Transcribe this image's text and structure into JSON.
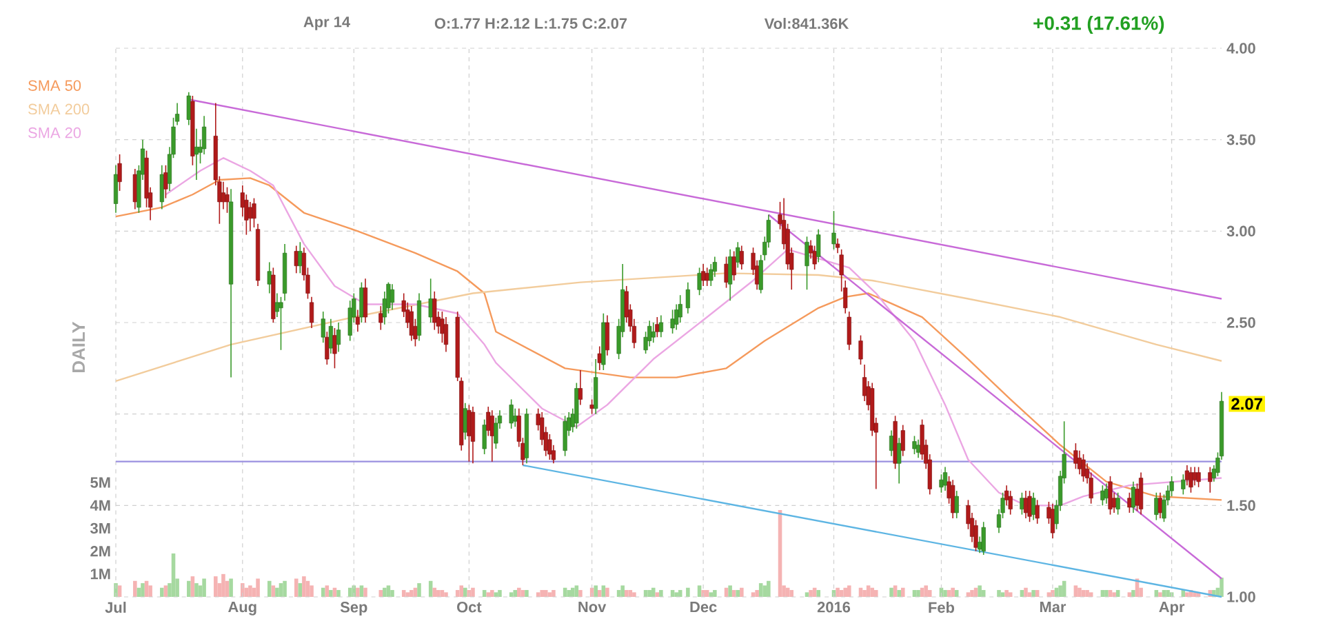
{
  "chart_data": {
    "type": "candlestick",
    "x": [
      "2015-07-01",
      "2015-07-02",
      "2015-07-06",
      "2015-07-07",
      "2015-07-08",
      "2015-07-09",
      "2015-07-10",
      "2015-07-13",
      "2015-07-14",
      "2015-07-15",
      "2015-07-16",
      "2015-07-17",
      "2015-07-20",
      "2015-07-21",
      "2015-07-22",
      "2015-07-23",
      "2015-07-24",
      "2015-07-27",
      "2015-07-28",
      "2015-07-29",
      "2015-07-30",
      "2015-07-31",
      "2015-08-03",
      "2015-08-04",
      "2015-08-05",
      "2015-08-06",
      "2015-08-07",
      "2015-08-10",
      "2015-08-11",
      "2015-08-12",
      "2015-08-13",
      "2015-08-14",
      "2015-08-17",
      "2015-08-18",
      "2015-08-19",
      "2015-08-20",
      "2015-08-21",
      "2015-08-24",
      "2015-08-25",
      "2015-08-26",
      "2015-08-27",
      "2015-08-28",
      "2015-08-31",
      "2015-09-01",
      "2015-09-02",
      "2015-09-03",
      "2015-09-04",
      "2015-09-08",
      "2015-09-09",
      "2015-09-10",
      "2015-09-11",
      "2015-09-14",
      "2015-09-15",
      "2015-09-16",
      "2015-09-17",
      "2015-09-18",
      "2015-09-21",
      "2015-09-22",
      "2015-09-23",
      "2015-09-24",
      "2015-09-25",
      "2015-09-28",
      "2015-09-29",
      "2015-09-30",
      "2015-10-01",
      "2015-10-02",
      "2015-10-05",
      "2015-10-06",
      "2015-10-07",
      "2015-10-08",
      "2015-10-09",
      "2015-10-12",
      "2015-10-13",
      "2015-10-14",
      "2015-10-15",
      "2015-10-16",
      "2015-10-19",
      "2015-10-20",
      "2015-10-21",
      "2015-10-22",
      "2015-10-23",
      "2015-10-26",
      "2015-10-27",
      "2015-10-28",
      "2015-10-29",
      "2015-10-30",
      "2015-11-02",
      "2015-11-03",
      "2015-11-04",
      "2015-11-05",
      "2015-11-06",
      "2015-11-09",
      "2015-11-10",
      "2015-11-11",
      "2015-11-12",
      "2015-11-13",
      "2015-11-16",
      "2015-11-17",
      "2015-11-18",
      "2015-11-19",
      "2015-11-20",
      "2015-11-23",
      "2015-11-24",
      "2015-11-25",
      "2015-11-27",
      "2015-11-30",
      "2015-12-01",
      "2015-12-02",
      "2015-12-03",
      "2015-12-04",
      "2015-12-07",
      "2015-12-08",
      "2015-12-09",
      "2015-12-10",
      "2015-12-11",
      "2015-12-14",
      "2015-12-15",
      "2015-12-16",
      "2015-12-17",
      "2015-12-18",
      "2015-12-21",
      "2015-12-22",
      "2015-12-23",
      "2015-12-24",
      "2015-12-28",
      "2015-12-29",
      "2015-12-30",
      "2015-12-31",
      "2016-01-04",
      "2016-01-05",
      "2016-01-06",
      "2016-01-07",
      "2016-01-08",
      "2016-01-11",
      "2016-01-12",
      "2016-01-13",
      "2016-01-14",
      "2016-01-15",
      "2016-01-19",
      "2016-01-20",
      "2016-01-21",
      "2016-01-22",
      "2016-01-25",
      "2016-01-26",
      "2016-01-27",
      "2016-01-28",
      "2016-01-29",
      "2016-02-01",
      "2016-02-02",
      "2016-02-03",
      "2016-02-04",
      "2016-02-05",
      "2016-02-08",
      "2016-02-09",
      "2016-02-10",
      "2016-02-11",
      "2016-02-12",
      "2016-02-16",
      "2016-02-17",
      "2016-02-18",
      "2016-02-19",
      "2016-02-22",
      "2016-02-23",
      "2016-02-24",
      "2016-02-25",
      "2016-02-26",
      "2016-02-29",
      "2016-03-01",
      "2016-03-02",
      "2016-03-03",
      "2016-03-04",
      "2016-03-07",
      "2016-03-08",
      "2016-03-09",
      "2016-03-10",
      "2016-03-11",
      "2016-03-14",
      "2016-03-15",
      "2016-03-16",
      "2016-03-17",
      "2016-03-18",
      "2016-03-21",
      "2016-03-22",
      "2016-03-23",
      "2016-03-24",
      "2016-03-28",
      "2016-03-29",
      "2016-03-30",
      "2016-03-31",
      "2016-04-01",
      "2016-04-04",
      "2016-04-05",
      "2016-04-06",
      "2016-04-07",
      "2016-04-08",
      "2016-04-11",
      "2016-04-12",
      "2016-04-13",
      "2016-04-14"
    ],
    "ohlc": [
      [
        3.15,
        3.36,
        3.1,
        3.31
      ],
      [
        3.37,
        3.42,
        3.22,
        3.27
      ],
      [
        3.31,
        3.34,
        3.12,
        3.16
      ],
      [
        3.13,
        3.36,
        3.1,
        3.33
      ],
      [
        3.31,
        3.5,
        3.28,
        3.45
      ],
      [
        3.4,
        3.44,
        3.13,
        3.18
      ],
      [
        3.21,
        3.24,
        3.06,
        3.13
      ],
      [
        3.16,
        3.36,
        3.12,
        3.31
      ],
      [
        3.32,
        3.36,
        3.18,
        3.23
      ],
      [
        3.26,
        3.46,
        3.22,
        3.42
      ],
      [
        3.42,
        3.62,
        3.4,
        3.57
      ],
      [
        3.6,
        3.7,
        3.58,
        3.64
      ],
      [
        3.61,
        3.76,
        3.58,
        3.74
      ],
      [
        3.71,
        3.74,
        3.36,
        3.41
      ],
      [
        3.42,
        3.56,
        3.28,
        3.46
      ],
      [
        3.43,
        3.5,
        3.37,
        3.46
      ],
      [
        3.45,
        3.63,
        3.42,
        3.57
      ],
      [
        3.52,
        3.7,
        3.25,
        3.28
      ],
      [
        3.27,
        3.3,
        3.04,
        3.16
      ],
      [
        3.21,
        3.27,
        3.12,
        3.16
      ],
      [
        3.2,
        3.24,
        3.1,
        3.16
      ],
      [
        2.71,
        3.23,
        2.2,
        3.16
      ],
      [
        3.21,
        3.25,
        3.08,
        3.13
      ],
      [
        3.17,
        3.2,
        2.98,
        3.06
      ],
      [
        3.13,
        3.16,
        3.0,
        3.07
      ],
      [
        3.15,
        3.18,
        3.02,
        3.07
      ],
      [
        3.01,
        3.04,
        2.7,
        2.73
      ],
      [
        2.71,
        2.83,
        2.66,
        2.78
      ],
      [
        2.76,
        2.8,
        2.5,
        2.52
      ],
      [
        2.56,
        2.66,
        2.53,
        2.61
      ],
      [
        2.58,
        2.64,
        2.35,
        2.61
      ],
      [
        2.66,
        2.93,
        2.62,
        2.88
      ],
      [
        2.89,
        2.92,
        2.77,
        2.81
      ],
      [
        2.81,
        2.94,
        2.77,
        2.89
      ],
      [
        2.88,
        2.91,
        2.73,
        2.76
      ],
      [
        2.76,
        2.8,
        2.63,
        2.66
      ],
      [
        2.61,
        2.64,
        2.47,
        2.5
      ],
      [
        2.42,
        2.56,
        2.39,
        2.52
      ],
      [
        2.42,
        2.45,
        2.27,
        2.3
      ],
      [
        2.36,
        2.52,
        2.33,
        2.48
      ],
      [
        2.43,
        2.47,
        2.25,
        2.33
      ],
      [
        2.38,
        2.5,
        2.34,
        2.46
      ],
      [
        2.43,
        2.62,
        2.4,
        2.58
      ],
      [
        2.53,
        2.66,
        2.5,
        2.63
      ],
      [
        2.53,
        2.57,
        2.45,
        2.49
      ],
      [
        2.53,
        2.72,
        2.5,
        2.69
      ],
      [
        2.69,
        2.74,
        2.5,
        2.53
      ],
      [
        2.55,
        2.59,
        2.46,
        2.5
      ],
      [
        2.53,
        2.67,
        2.49,
        2.63
      ],
      [
        2.58,
        2.72,
        2.55,
        2.71
      ],
      [
        2.61,
        2.71,
        2.57,
        2.68
      ],
      [
        2.62,
        2.66,
        2.53,
        2.56
      ],
      [
        2.57,
        2.61,
        2.47,
        2.5
      ],
      [
        2.56,
        2.59,
        2.4,
        2.43
      ],
      [
        2.48,
        2.52,
        2.37,
        2.41
      ],
      [
        2.43,
        2.66,
        2.4,
        2.62
      ],
      [
        2.53,
        2.74,
        2.5,
        2.63
      ],
      [
        2.63,
        2.67,
        2.46,
        2.5
      ],
      [
        2.53,
        2.56,
        2.44,
        2.48
      ],
      [
        2.52,
        2.56,
        2.39,
        2.44
      ],
      [
        2.49,
        2.53,
        2.34,
        2.38
      ],
      [
        2.53,
        2.56,
        2.18,
        2.2
      ],
      [
        2.18,
        2.2,
        1.8,
        1.83
      ],
      [
        1.9,
        2.06,
        1.86,
        2.03
      ],
      [
        2.02,
        2.05,
        1.74,
        1.88
      ],
      [
        2.01,
        2.04,
        1.73,
        1.85
      ],
      [
        1.81,
        1.97,
        1.78,
        1.94
      ],
      [
        2.01,
        2.04,
        1.88,
        1.91
      ],
      [
        1.99,
        2.02,
        1.74,
        1.88
      ],
      [
        1.84,
        1.98,
        1.81,
        1.95
      ],
      [
        1.95,
        2.02,
        1.92,
        1.99
      ],
      [
        1.95,
        2.08,
        1.92,
        2.05
      ],
      [
        1.96,
        2.03,
        1.93,
        1.99
      ],
      [
        1.99,
        2.03,
        1.82,
        1.85
      ],
      [
        1.84,
        1.87,
        1.72,
        1.75
      ],
      [
        1.76,
        2.03,
        1.73,
        2.0
      ],
      [
        2.0,
        2.03,
        1.91,
        1.94
      ],
      [
        1.98,
        2.01,
        1.83,
        1.86
      ],
      [
        1.9,
        1.93,
        1.77,
        1.8
      ],
      [
        1.86,
        1.89,
        1.75,
        1.78
      ],
      [
        1.8,
        1.83,
        1.73,
        1.75
      ],
      [
        1.8,
        1.99,
        1.77,
        1.96
      ],
      [
        1.91,
        2.01,
        1.88,
        1.98
      ],
      [
        1.93,
        2.03,
        1.9,
        2.0
      ],
      [
        1.95,
        2.17,
        1.92,
        2.14
      ],
      [
        2.14,
        2.24,
        2.05,
        2.08
      ],
      [
        2.05,
        2.08,
        2.0,
        2.03
      ],
      [
        2.03,
        2.3,
        2.0,
        2.2
      ],
      [
        2.33,
        2.37,
        2.24,
        2.28
      ],
      [
        2.27,
        2.55,
        2.24,
        2.5
      ],
      [
        2.5,
        2.54,
        2.32,
        2.35
      ],
      [
        2.33,
        2.52,
        2.3,
        2.48
      ],
      [
        2.45,
        2.82,
        2.42,
        2.68
      ],
      [
        2.67,
        2.7,
        2.5,
        2.53
      ],
      [
        2.57,
        2.6,
        2.45,
        2.48
      ],
      [
        2.48,
        2.52,
        2.36,
        2.39
      ],
      [
        2.35,
        2.45,
        2.33,
        2.42
      ],
      [
        2.4,
        2.51,
        2.37,
        2.48
      ],
      [
        2.42,
        2.5,
        2.39,
        2.45
      ],
      [
        2.49,
        2.53,
        2.42,
        2.45
      ],
      [
        2.45,
        2.54,
        2.42,
        2.5
      ],
      [
        2.47,
        2.57,
        2.44,
        2.52
      ],
      [
        2.49,
        2.6,
        2.46,
        2.57
      ],
      [
        2.53,
        2.65,
        2.5,
        2.6
      ],
      [
        2.58,
        2.72,
        2.55,
        2.68
      ],
      [
        2.68,
        2.8,
        2.65,
        2.77
      ],
      [
        2.78,
        2.82,
        2.7,
        2.73
      ],
      [
        2.77,
        2.8,
        2.7,
        2.73
      ],
      [
        2.73,
        2.82,
        2.7,
        2.79
      ],
      [
        2.78,
        2.86,
        2.75,
        2.83
      ],
      [
        2.82,
        2.86,
        2.69,
        2.72
      ],
      [
        2.71,
        2.9,
        2.62,
        2.86
      ],
      [
        2.86,
        2.89,
        2.73,
        2.76
      ],
      [
        2.83,
        2.94,
        2.8,
        2.91
      ],
      [
        2.89,
        2.92,
        2.79,
        2.82
      ],
      [
        2.88,
        2.91,
        2.76,
        2.79
      ],
      [
        2.81,
        2.84,
        2.68,
        2.71
      ],
      [
        2.68,
        2.87,
        2.66,
        2.84
      ],
      [
        2.87,
        2.97,
        2.84,
        2.94
      ],
      [
        2.94,
        3.09,
        2.91,
        3.06
      ],
      [
        3.09,
        3.16,
        3.01,
        3.04
      ],
      [
        3.06,
        3.18,
        2.9,
        2.93
      ],
      [
        3.01,
        3.04,
        2.79,
        2.82
      ],
      [
        2.88,
        2.91,
        2.68,
        2.79
      ],
      [
        2.81,
        2.97,
        2.68,
        2.94
      ],
      [
        2.92,
        2.95,
        2.85,
        2.88
      ],
      [
        2.89,
        2.92,
        2.79,
        2.82
      ],
      [
        2.86,
        3.01,
        2.83,
        2.98
      ],
      [
        2.93,
        3.11,
        2.9,
        2.99
      ],
      [
        2.93,
        2.96,
        2.88,
        2.91
      ],
      [
        2.87,
        2.9,
        2.67,
        2.76
      ],
      [
        2.69,
        2.73,
        2.55,
        2.58
      ],
      [
        2.53,
        2.56,
        2.35,
        2.38
      ],
      [
        2.4,
        2.43,
        2.27,
        2.3
      ],
      [
        2.2,
        2.27,
        2.07,
        2.1
      ],
      [
        2.15,
        2.18,
        2.02,
        2.05
      ],
      [
        2.14,
        2.17,
        1.88,
        1.91
      ],
      [
        1.95,
        1.98,
        1.59,
        1.9
      ],
      [
        1.8,
        1.91,
        1.77,
        1.88
      ],
      [
        1.96,
        1.99,
        1.7,
        1.73
      ],
      [
        1.73,
        1.87,
        1.62,
        1.84
      ],
      [
        1.91,
        1.94,
        1.77,
        1.8
      ],
      [
        1.81,
        1.88,
        1.78,
        1.85
      ],
      [
        1.79,
        1.86,
        1.76,
        1.83
      ],
      [
        1.94,
        1.97,
        1.75,
        1.78
      ],
      [
        1.83,
        1.86,
        1.7,
        1.73
      ],
      [
        1.75,
        1.78,
        1.56,
        1.59
      ],
      [
        1.6,
        1.67,
        1.57,
        1.64
      ],
      [
        1.61,
        1.71,
        1.58,
        1.68
      ],
      [
        1.63,
        1.66,
        1.51,
        1.54
      ],
      [
        1.61,
        1.64,
        1.43,
        1.46
      ],
      [
        1.46,
        1.58,
        1.43,
        1.55
      ],
      [
        1.5,
        1.53,
        1.37,
        1.4
      ],
      [
        1.43,
        1.46,
        1.3,
        1.33
      ],
      [
        1.39,
        1.42,
        1.25,
        1.27
      ],
      [
        1.26,
        1.33,
        1.24,
        1.3
      ],
      [
        1.25,
        1.41,
        1.23,
        1.38
      ],
      [
        1.38,
        1.48,
        1.35,
        1.45
      ],
      [
        1.46,
        1.57,
        1.43,
        1.54
      ],
      [
        1.58,
        1.61,
        1.5,
        1.53
      ],
      [
        1.55,
        1.58,
        1.45,
        1.48
      ],
      [
        1.48,
        1.57,
        1.45,
        1.54
      ],
      [
        1.54,
        1.58,
        1.43,
        1.46
      ],
      [
        1.55,
        1.58,
        1.41,
        1.44
      ],
      [
        1.45,
        1.57,
        1.42,
        1.54
      ],
      [
        1.5,
        1.53,
        1.4,
        1.43
      ],
      [
        1.49,
        1.52,
        1.4,
        1.43
      ],
      [
        1.48,
        1.51,
        1.32,
        1.35
      ],
      [
        1.4,
        1.53,
        1.37,
        1.5
      ],
      [
        1.5,
        1.69,
        1.47,
        1.66
      ],
      [
        1.65,
        1.96,
        1.62,
        1.78
      ],
      [
        1.8,
        1.84,
        1.7,
        1.73
      ],
      [
        1.76,
        1.8,
        1.67,
        1.7
      ],
      [
        1.75,
        1.78,
        1.63,
        1.66
      ],
      [
        1.7,
        1.73,
        1.62,
        1.65
      ],
      [
        1.65,
        1.68,
        1.51,
        1.54
      ],
      [
        1.53,
        1.61,
        1.5,
        1.58
      ],
      [
        1.54,
        1.62,
        1.51,
        1.59
      ],
      [
        1.63,
        1.66,
        1.45,
        1.48
      ],
      [
        1.54,
        1.57,
        1.46,
        1.49
      ],
      [
        1.48,
        1.57,
        1.45,
        1.54
      ],
      [
        1.54,
        1.57,
        1.46,
        1.49
      ],
      [
        1.49,
        1.63,
        1.46,
        1.6
      ],
      [
        1.59,
        1.62,
        1.47,
        1.5
      ],
      [
        1.65,
        1.68,
        1.45,
        1.48
      ],
      [
        1.45,
        1.57,
        1.42,
        1.54
      ],
      [
        1.54,
        1.57,
        1.43,
        1.46
      ],
      [
        1.43,
        1.56,
        1.41,
        1.53
      ],
      [
        1.53,
        1.61,
        1.5,
        1.58
      ],
      [
        1.58,
        1.66,
        1.55,
        1.63
      ],
      [
        1.59,
        1.67,
        1.56,
        1.64
      ],
      [
        1.69,
        1.72,
        1.61,
        1.64
      ],
      [
        1.68,
        1.71,
        1.57,
        1.6
      ],
      [
        1.68,
        1.71,
        1.61,
        1.64
      ],
      [
        1.68,
        1.71,
        1.6,
        1.63
      ],
      [
        1.68,
        1.71,
        1.57,
        1.63
      ],
      [
        1.65,
        1.72,
        1.63,
        1.7
      ],
      [
        1.68,
        1.79,
        1.66,
        1.76
      ],
      [
        1.77,
        2.12,
        1.75,
        2.07
      ]
    ],
    "colors": [
      "#3a9a2a",
      "#b01a1a",
      "#b01a1a",
      "#3a9a2a",
      "#3a9a2a",
      "#b01a1a",
      "#b01a1a",
      "#3a9a2a",
      "#b01a1a",
      "#3a9a2a",
      "#3a9a2a",
      "#3a9a2a",
      "#3a9a2a",
      "#b01a1a",
      "#3a9a2a",
      "#3a9a2a",
      "#3a9a2a",
      "#b01a1a",
      "#b01a1a",
      "#b01a1a",
      "#b01a1a",
      "#3a9a2a",
      "#b01a1a",
      "#b01a1a",
      "#b01a1a",
      "#b01a1a",
      "#b01a1a",
      "#3a9a2a",
      "#b01a1a",
      "#3a9a2a",
      "#3a9a2a",
      "#3a9a2a",
      "#b01a1a",
      "#3a9a2a",
      "#b01a1a",
      "#b01a1a",
      "#b01a1a",
      "#3a9a2a",
      "#b01a1a",
      "#3a9a2a",
      "#b01a1a",
      "#3a9a2a",
      "#3a9a2a",
      "#3a9a2a",
      "#b01a1a",
      "#3a9a2a",
      "#b01a1a",
      "#b01a1a",
      "#3a9a2a",
      "#3a9a2a",
      "#3a9a2a",
      "#b01a1a",
      "#b01a1a",
      "#b01a1a",
      "#b01a1a",
      "#3a9a2a",
      "#3a9a2a",
      "#b01a1a",
      "#b01a1a",
      "#b01a1a",
      "#b01a1a",
      "#b01a1a",
      "#b01a1a",
      "#3a9a2a",
      "#b01a1a",
      "#b01a1a",
      "#3a9a2a",
      "#b01a1a",
      "#b01a1a",
      "#3a9a2a",
      "#3a9a2a",
      "#3a9a2a",
      "#3a9a2a",
      "#b01a1a",
      "#b01a1a",
      "#3a9a2a",
      "#b01a1a",
      "#b01a1a",
      "#b01a1a",
      "#b01a1a",
      "#b01a1a",
      "#3a9a2a",
      "#3a9a2a",
      "#3a9a2a",
      "#3a9a2a",
      "#b01a1a",
      "#b01a1a",
      "#3a9a2a",
      "#b01a1a",
      "#3a9a2a",
      "#b01a1a",
      "#3a9a2a",
      "#3a9a2a",
      "#b01a1a",
      "#b01a1a",
      "#b01a1a",
      "#3a9a2a",
      "#3a9a2a",
      "#3a9a2a",
      "#b01a1a",
      "#3a9a2a",
      "#3a9a2a",
      "#3a9a2a",
      "#3a9a2a",
      "#3a9a2a",
      "#3a9a2a",
      "#b01a1a",
      "#b01a1a",
      "#3a9a2a",
      "#3a9a2a",
      "#b01a1a",
      "#3a9a2a",
      "#b01a1a",
      "#3a9a2a",
      "#b01a1a",
      "#b01a1a",
      "#b01a1a",
      "#3a9a2a",
      "#3a9a2a",
      "#3a9a2a",
      "#b01a1a",
      "#b01a1a",
      "#b01a1a",
      "#b01a1a",
      "#3a9a2a",
      "#b01a1a",
      "#b01a1a",
      "#3a9a2a",
      "#3a9a2a",
      "#b01a1a",
      "#b01a1a",
      "#b01a1a",
      "#b01a1a",
      "#b01a1a",
      "#b01a1a",
      "#b01a1a",
      "#b01a1a",
      "#b01a1a",
      "#3a9a2a",
      "#b01a1a",
      "#3a9a2a",
      "#b01a1a",
      "#3a9a2a",
      "#3a9a2a",
      "#b01a1a",
      "#b01a1a",
      "#b01a1a",
      "#3a9a2a",
      "#3a9a2a",
      "#b01a1a",
      "#b01a1a",
      "#3a9a2a",
      "#b01a1a",
      "#b01a1a",
      "#b01a1a",
      "#3a9a2a",
      "#3a9a2a",
      "#3a9a2a",
      "#3a9a2a",
      "#b01a1a",
      "#b01a1a",
      "#3a9a2a",
      "#b01a1a",
      "#b01a1a",
      "#3a9a2a",
      "#b01a1a",
      "#b01a1a",
      "#b01a1a",
      "#3a9a2a",
      "#3a9a2a",
      "#3a9a2a",
      "#b01a1a",
      "#b01a1a",
      "#b01a1a",
      "#b01a1a",
      "#b01a1a",
      "#3a9a2a",
      "#3a9a2a",
      "#b01a1a",
      "#b01a1a",
      "#3a9a2a",
      "#b01a1a",
      "#3a9a2a",
      "#b01a1a",
      "#b01a1a",
      "#3a9a2a",
      "#b01a1a",
      "#3a9a2a",
      "#3a9a2a",
      "#3a9a2a",
      "#3a9a2a",
      "#b01a1a",
      "#b01a1a",
      "#b01a1a",
      "#b01a1a",
      "#b01a1a",
      "#3a9a2a",
      "#3a9a2a",
      "#3a9a2a"
    ],
    "series": [
      {
        "type": "bar",
        "axis": "y2",
        "values": [
          0.6,
          0.5,
          0.7,
          0.4,
          0.6,
          0.7,
          0.5,
          0.4,
          0.5,
          0.6,
          1.9,
          0.8,
          0.7,
          0.9,
          0.6,
          0.5,
          0.8,
          0.9,
          0.6,
          1.0,
          0.7,
          0.8,
          0.6,
          0.4,
          0.5,
          0.4,
          0.8,
          0.7,
          0.5,
          0.4,
          0.6,
          0.7,
          0.8,
          0.6,
          0.9,
          0.7,
          0.5,
          0.4,
          0.5,
          0.3,
          0.4,
          0.3,
          0.4,
          0.5,
          0.4,
          0.5,
          0.4,
          0.3,
          0.4,
          0.5,
          0.3,
          0.3,
          0.2,
          0.3,
          0.4,
          0.6,
          0.7,
          0.4,
          0.3,
          0.3,
          0.2,
          0.3,
          0.5,
          0.4,
          0.3,
          0.4,
          0.3,
          0.2,
          0.3,
          0.2,
          0.3,
          0.2,
          0.3,
          0.4,
          0.3,
          0.3,
          0.2,
          0.3,
          0.3,
          0.2,
          0.3,
          0.4,
          0.3,
          0.4,
          0.5,
          0.3,
          0.4,
          0.5,
          0.3,
          0.5,
          0.4,
          0.3,
          0.5,
          0.3,
          0.3,
          0.2,
          0.3,
          0.3,
          0.4,
          0.2,
          0.3,
          0.3,
          0.2,
          0.3,
          0.4,
          0.5,
          0.3,
          0.3,
          0.2,
          0.3,
          0.4,
          0.5,
          0.3,
          0.3,
          0.4,
          0.2,
          0.3,
          0.6,
          0.5,
          0.7,
          3.8,
          0.5,
          0.4,
          0.3,
          0.2,
          0.3,
          0.4,
          0.3,
          0.3,
          0.4,
          0.3,
          0.4,
          0.5,
          0.4,
          0.3,
          0.5,
          0.4,
          0.3,
          0.4,
          0.5,
          0.3,
          0.4,
          0.3,
          0.3,
          0.4,
          0.5,
          0.3,
          0.4,
          0.3,
          0.3,
          0.4,
          0.3,
          0.2,
          0.3,
          0.4,
          0.5,
          0.3,
          0.3,
          0.2,
          0.3,
          0.2,
          0.3,
          0.4,
          0.2,
          0.3,
          0.3,
          0.2,
          0.3,
          0.4,
          0.5,
          0.7,
          0.5,
          0.4,
          0.3,
          0.3,
          0.2,
          0.3,
          0.3,
          0.3,
          0.2,
          0.3,
          0.2,
          0.3,
          0.8,
          0.4,
          0.3,
          0.2,
          0.3,
          0.3,
          0.2,
          0.3,
          0.2,
          0.3,
          0.2,
          0.2,
          0.3,
          0.3,
          0.4,
          0.84
        ],
        "colors": [
          "#a6d9a0",
          "#f5b3b3",
          "#f5b3b3",
          "#a6d9a0",
          "#a6d9a0",
          "#f5b3b3",
          "#f5b3b3",
          "#a6d9a0",
          "#f5b3b3",
          "#a6d9a0",
          "#a6d9a0",
          "#a6d9a0",
          "#a6d9a0",
          "#f5b3b3",
          "#a6d9a0",
          "#a6d9a0",
          "#a6d9a0",
          "#f5b3b3",
          "#f5b3b3",
          "#f5b3b3",
          "#f5b3b3",
          "#a6d9a0",
          "#f5b3b3",
          "#f5b3b3",
          "#f5b3b3",
          "#f5b3b3",
          "#f5b3b3",
          "#a6d9a0",
          "#f5b3b3",
          "#a6d9a0",
          "#a6d9a0",
          "#a6d9a0",
          "#f5b3b3",
          "#a6d9a0",
          "#f5b3b3",
          "#f5b3b3",
          "#f5b3b3",
          "#a6d9a0",
          "#f5b3b3",
          "#a6d9a0",
          "#f5b3b3",
          "#a6d9a0",
          "#a6d9a0",
          "#a6d9a0",
          "#f5b3b3",
          "#a6d9a0",
          "#f5b3b3",
          "#f5b3b3",
          "#a6d9a0",
          "#a6d9a0",
          "#a6d9a0",
          "#f5b3b3",
          "#f5b3b3",
          "#f5b3b3",
          "#f5b3b3",
          "#a6d9a0",
          "#a6d9a0",
          "#f5b3b3",
          "#f5b3b3",
          "#f5b3b3",
          "#f5b3b3",
          "#f5b3b3",
          "#f5b3b3",
          "#a6d9a0",
          "#f5b3b3",
          "#f5b3b3",
          "#a6d9a0",
          "#f5b3b3",
          "#f5b3b3",
          "#a6d9a0",
          "#a6d9a0",
          "#a6d9a0",
          "#a6d9a0",
          "#f5b3b3",
          "#f5b3b3",
          "#a6d9a0",
          "#f5b3b3",
          "#f5b3b3",
          "#f5b3b3",
          "#f5b3b3",
          "#f5b3b3",
          "#a6d9a0",
          "#a6d9a0",
          "#a6d9a0",
          "#a6d9a0",
          "#f5b3b3",
          "#f5b3b3",
          "#a6d9a0",
          "#f5b3b3",
          "#a6d9a0",
          "#f5b3b3",
          "#a6d9a0",
          "#a6d9a0",
          "#f5b3b3",
          "#f5b3b3",
          "#f5b3b3",
          "#a6d9a0",
          "#a6d9a0",
          "#a6d9a0",
          "#f5b3b3",
          "#a6d9a0",
          "#a6d9a0",
          "#a6d9a0",
          "#a6d9a0",
          "#a6d9a0",
          "#a6d9a0",
          "#f5b3b3",
          "#f5b3b3",
          "#a6d9a0",
          "#a6d9a0",
          "#f5b3b3",
          "#a6d9a0",
          "#f5b3b3",
          "#a6d9a0",
          "#f5b3b3",
          "#f5b3b3",
          "#f5b3b3",
          "#a6d9a0",
          "#a6d9a0",
          "#a6d9a0",
          "#f5b3b3",
          "#f5b3b3",
          "#f5b3b3",
          "#f5b3b3",
          "#a6d9a0",
          "#f5b3b3",
          "#f5b3b3",
          "#a6d9a0",
          "#a6d9a0",
          "#f5b3b3",
          "#f5b3b3",
          "#f5b3b3",
          "#f5b3b3",
          "#f5b3b3",
          "#f5b3b3",
          "#f5b3b3",
          "#f5b3b3",
          "#f5b3b3",
          "#a6d9a0",
          "#f5b3b3",
          "#a6d9a0",
          "#f5b3b3",
          "#a6d9a0",
          "#a6d9a0",
          "#f5b3b3",
          "#f5b3b3",
          "#f5b3b3",
          "#a6d9a0",
          "#a6d9a0",
          "#f5b3b3",
          "#f5b3b3",
          "#a6d9a0",
          "#f5b3b3",
          "#f5b3b3",
          "#f5b3b3",
          "#a6d9a0",
          "#a6d9a0",
          "#a6d9a0",
          "#a6d9a0",
          "#f5b3b3",
          "#f5b3b3",
          "#a6d9a0",
          "#f5b3b3",
          "#f5b3b3",
          "#a6d9a0",
          "#f5b3b3",
          "#f5b3b3",
          "#f5b3b3",
          "#a6d9a0",
          "#a6d9a0",
          "#a6d9a0",
          "#f5b3b3",
          "#f5b3b3",
          "#f5b3b3",
          "#f5b3b3",
          "#f5b3b3",
          "#a6d9a0",
          "#a6d9a0",
          "#f5b3b3",
          "#f5b3b3",
          "#a6d9a0",
          "#f5b3b3",
          "#a6d9a0",
          "#f5b3b3",
          "#f5b3b3",
          "#a6d9a0",
          "#f5b3b3",
          "#a6d9a0",
          "#a6d9a0",
          "#a6d9a0",
          "#a6d9a0",
          "#f5b3b3",
          "#f5b3b3",
          "#f5b3b3",
          "#f5b3b3",
          "#f5b3b3",
          "#a6d9a0",
          "#a6d9a0",
          "#a6d9a0"
        ]
      },
      {
        "name": "SMA 50",
        "type": "line",
        "color": "#f59a5c",
        "x": [
          "2015-07-01",
          "2015-07-13",
          "2015-07-21",
          "2015-07-28",
          "2015-08-05",
          "2015-08-10",
          "2015-08-19",
          "2015-09-02",
          "2015-09-17",
          "2015-09-28",
          "2015-10-05",
          "2015-10-08",
          "2015-10-26",
          "2015-11-12",
          "2015-11-24",
          "2015-12-07",
          "2015-12-17",
          "2015-12-31",
          "2016-01-07",
          "2016-01-13",
          "2016-01-27",
          "2016-02-08",
          "2016-02-19",
          "2016-03-03",
          "2016-03-15",
          "2016-03-28",
          "2016-04-14"
        ],
        "values": [
          3.08,
          3.13,
          3.2,
          3.28,
          3.29,
          3.25,
          3.1,
          3.0,
          2.88,
          2.78,
          2.66,
          2.45,
          2.25,
          2.2,
          2.2,
          2.25,
          2.4,
          2.58,
          2.64,
          2.66,
          2.53,
          2.3,
          2.08,
          1.83,
          1.63,
          1.55,
          1.53
        ]
      },
      {
        "name": "SMA 200",
        "type": "line",
        "color": "#f2cc9c",
        "x": [
          "2015-07-01",
          "2015-07-31",
          "2015-09-01",
          "2015-10-02",
          "2015-10-30",
          "2015-12-07",
          "2015-12-31",
          "2016-01-14",
          "2016-02-08",
          "2016-03-03",
          "2016-03-28",
          "2016-04-14"
        ],
        "values": [
          2.18,
          2.38,
          2.53,
          2.66,
          2.72,
          2.77,
          2.76,
          2.73,
          2.63,
          2.53,
          2.38,
          2.29
        ]
      },
      {
        "name": "SMA 20",
        "type": "line",
        "color": "#eba6e3",
        "x": [
          "2015-07-14",
          "2015-07-23",
          "2015-07-29",
          "2015-08-05",
          "2015-08-11",
          "2015-08-19",
          "2015-08-27",
          "2015-09-04",
          "2015-09-17",
          "2015-09-28",
          "2015-10-05",
          "2015-10-08",
          "2015-10-20",
          "2015-10-29",
          "2015-11-06",
          "2015-11-18",
          "2015-12-02",
          "2015-12-14",
          "2015-12-23",
          "2015-12-31",
          "2016-01-08",
          "2016-01-15",
          "2016-01-25",
          "2016-02-02",
          "2016-02-08",
          "2016-02-16",
          "2016-02-23",
          "2016-03-03",
          "2016-03-09",
          "2016-03-21",
          "2016-04-14"
        ],
        "values": [
          3.2,
          3.33,
          3.4,
          3.33,
          3.25,
          2.93,
          2.7,
          2.6,
          2.6,
          2.55,
          2.38,
          2.28,
          2.03,
          1.93,
          2.05,
          2.3,
          2.53,
          2.73,
          2.9,
          2.85,
          2.8,
          2.66,
          2.4,
          2.05,
          1.75,
          1.57,
          1.5,
          1.5,
          1.55,
          1.61,
          1.65
        ]
      },
      {
        "type": "line",
        "color": "#c86ad8",
        "x": [
          "2015-07-20",
          "2016-04-14"
        ],
        "values": [
          3.72,
          2.63
        ]
      },
      {
        "type": "line",
        "color": "#c86ad8",
        "x": [
          "2015-12-18",
          "2016-04-14"
        ],
        "values": [
          3.09,
          1.1
        ]
      },
      {
        "type": "line",
        "color": "#5db5e3",
        "x": [
          "2015-10-15",
          "2016-04-14"
        ],
        "values": [
          1.72,
          1.0
        ]
      }
    ],
    "ref_lines": [
      {
        "axis": "y",
        "value": 1.74,
        "color": "#9a90e0"
      }
    ],
    "xlim": [
      "2015-07-01",
      "2016-04-14"
    ],
    "xticks": [
      {
        "value": "2015-07-01",
        "label": "Jul"
      },
      {
        "value": "2015-08-03",
        "label": "Aug"
      },
      {
        "value": "2015-09-01",
        "label": "Sep"
      },
      {
        "value": "2015-10-01",
        "label": "Oct"
      },
      {
        "value": "2015-11-02",
        "label": "Nov"
      },
      {
        "value": "2015-12-01",
        "label": "Dec"
      },
      {
        "value": "2016-01-04",
        "label": "2016"
      },
      {
        "value": "2016-02-01",
        "label": "Feb"
      },
      {
        "value": "2016-03-01",
        "label": "Mar"
      },
      {
        "value": "2016-04-01",
        "label": "Apr"
      }
    ],
    "ylim": [
      1,
      4
    ],
    "yticks": [
      {
        "value": 1,
        "label": "1.00"
      },
      {
        "value": 1.5,
        "label": "1.50"
      },
      {
        "value": 2,
        "label": null
      },
      {
        "value": 2.5,
        "label": "2.50"
      },
      {
        "value": 3,
        "label": "3.00"
      },
      {
        "value": 3.5,
        "label": "3.50"
      },
      {
        "value": 4,
        "label": "4.00"
      }
    ],
    "y2lim": [
      0,
      24
    ],
    "y2ticks": [
      {
        "value": 1,
        "label": "1M"
      },
      {
        "value": 2,
        "label": "2M"
      },
      {
        "value": 3,
        "label": "3M"
      },
      {
        "value": 4,
        "label": "4M"
      },
      {
        "value": 5,
        "label": "5M"
      }
    ],
    "grid": true,
    "legend": "top left",
    "annotations": [
      "Apr 14",
      "O:1.77  H:2.12  L:1.75  C:2.07",
      "Vol:841.36K",
      "+0.31 (17.61%)",
      "DAILY",
      "2.07"
    ]
  }
}
